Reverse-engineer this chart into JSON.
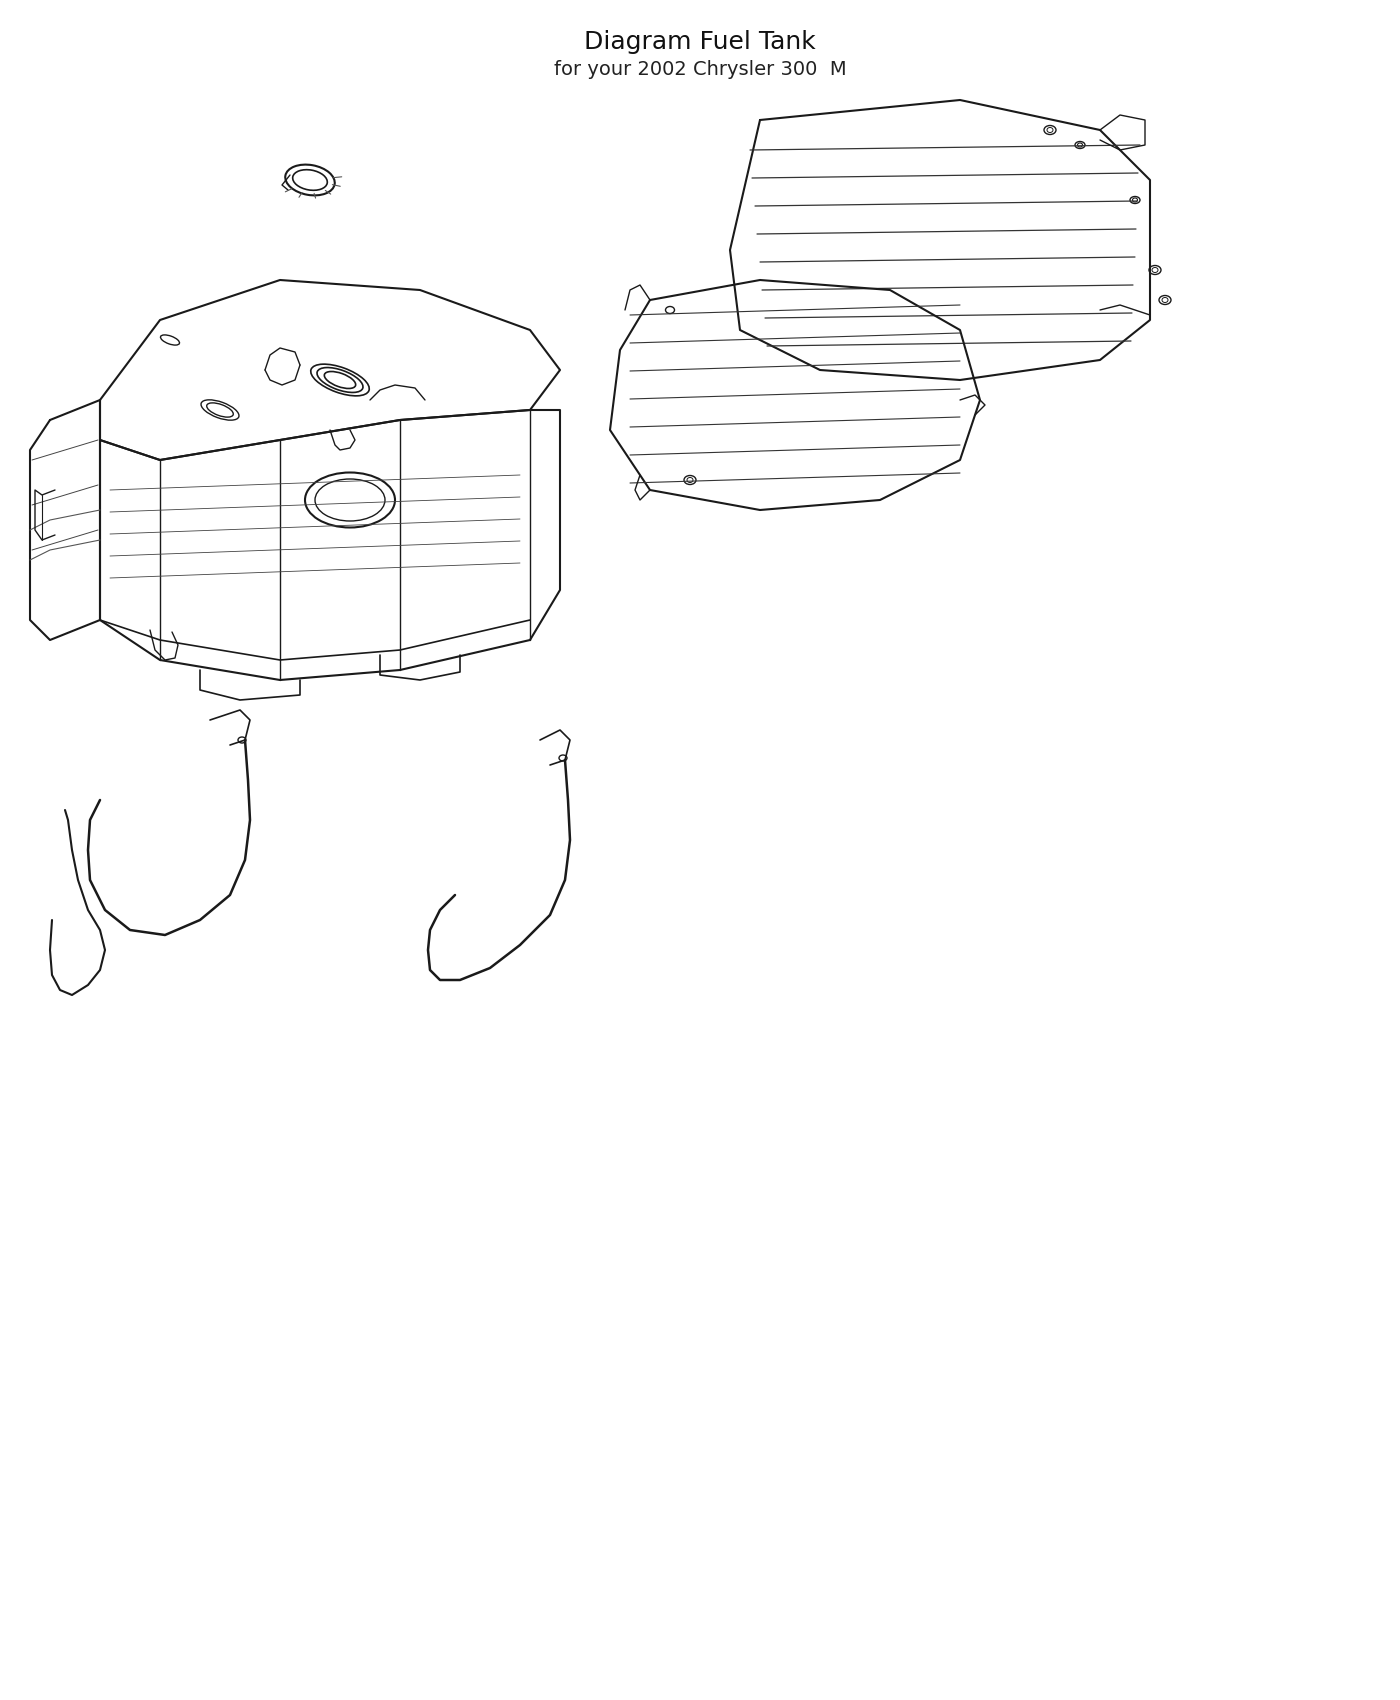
{
  "title": "Diagram Fuel Tank",
  "subtitle": "for your 2002 Chrysler 300  M",
  "background_color": "#ffffff",
  "line_color": "#1a1a1a",
  "line_width": 1.2,
  "fig_width": 14.0,
  "fig_height": 17.0,
  "dpi": 100
}
